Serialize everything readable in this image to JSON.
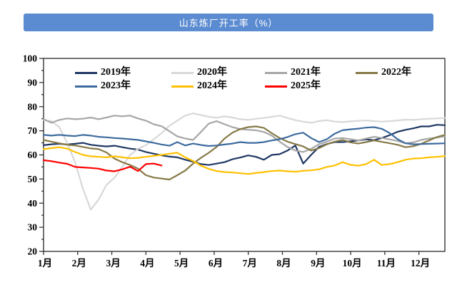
{
  "title_bar": {
    "text": "山东炼厂开工率（%）",
    "bg_color": "#5B8BD0",
    "text_color": "#FFFFFF"
  },
  "chart_data": {
    "type": "line",
    "title": "山东炼厂开工率（%）",
    "xlabel": "",
    "ylabel": "",
    "x_tick_labels": [
      "1月",
      "2月",
      "3月",
      "4月",
      "5月",
      "6月",
      "7月",
      "8月",
      "9月",
      "10月",
      "11月",
      "12月"
    ],
    "y_tick_labels": [
      "20",
      "30",
      "40",
      "50",
      "60",
      "70",
      "80",
      "90",
      "100"
    ],
    "ylim": [
      20,
      100
    ],
    "y_tick_step": 10,
    "grid": false,
    "legend_position": "inside-top, two rows",
    "x_unit": "week index (52 weeks per year, months marked on axis)",
    "series": [
      {
        "name": "2019年",
        "color": "#1F3864",
        "values": [
          64.0,
          64.4,
          64.6,
          64.3,
          64.6,
          65.0,
          64.2,
          63.8,
          63.5,
          63.8,
          63.2,
          62.6,
          62.2,
          61.2,
          60.5,
          59.8,
          59.3,
          59.0,
          58.0,
          57.2,
          56.2,
          55.8,
          56.4,
          57.0,
          58.2,
          58.9,
          59.8,
          59.2,
          58.0,
          60.0,
          60.3,
          61.8,
          63.9,
          56.4,
          60.0,
          63.3,
          64.5,
          65.3,
          65.3,
          65.6,
          66.0,
          66.4,
          66.1,
          67.0,
          68.2,
          69.6,
          70.4,
          71.0,
          71.8,
          71.8,
          72.5,
          72.3
        ]
      },
      {
        "name": "2020年",
        "color": "#D8D8D8",
        "values": [
          74.5,
          74.0,
          71.5,
          65.0,
          57.0,
          46.0,
          37.3,
          41.5,
          47.6,
          50.5,
          55.0,
          60.0,
          62.5,
          64.0,
          66.5,
          69.0,
          72.1,
          74.2,
          76.3,
          77.2,
          76.5,
          75.8,
          75.4,
          76.0,
          75.5,
          74.8,
          74.5,
          75.0,
          75.3,
          75.8,
          76.3,
          75.3,
          74.4,
          73.8,
          73.3,
          74.0,
          74.4,
          73.8,
          73.6,
          73.9,
          74.1,
          74.3,
          74.0,
          73.8,
          74.0,
          74.3,
          74.6,
          74.5,
          74.8,
          75.0,
          75.1,
          75.3
        ]
      },
      {
        "name": "2021年",
        "color": "#A6A6A6",
        "values": [
          74.8,
          73.3,
          74.5,
          75.1,
          74.8,
          75.0,
          75.5,
          74.8,
          75.5,
          76.3,
          76.0,
          76.3,
          75.1,
          74.2,
          72.7,
          71.9,
          69.8,
          67.7,
          66.8,
          66.2,
          69.5,
          73.0,
          74.0,
          72.7,
          71.5,
          70.7,
          70.4,
          70.2,
          69.5,
          68.0,
          65.5,
          63.3,
          61.8,
          61.2,
          62.5,
          64.4,
          65.5,
          66.8,
          67.0,
          66.5,
          66.0,
          66.8,
          67.5,
          67.0,
          66.4,
          65.8,
          64.8,
          65.2,
          66.2,
          66.8,
          67.2,
          67.7
        ]
      },
      {
        "name": "2022年",
        "color": "#867946",
        "values": [
          66.2,
          65.5,
          64.8,
          64.2,
          63.9,
          63.3,
          62.7,
          62.4,
          61.0,
          58.5,
          57.0,
          55.8,
          54.3,
          51.6,
          50.6,
          50.2,
          49.8,
          51.6,
          53.5,
          56.4,
          58.8,
          60.9,
          63.3,
          66.8,
          69.2,
          70.7,
          71.5,
          71.8,
          71.2,
          69.0,
          67.0,
          65.5,
          64.5,
          63.5,
          61.8,
          62.8,
          64.4,
          65.5,
          66.2,
          65.2,
          64.7,
          65.3,
          66.0,
          65.4,
          64.8,
          64.2,
          63.2,
          63.6,
          64.6,
          66.0,
          67.4,
          68.3
        ]
      },
      {
        "name": "2023年",
        "color": "#3D6B9E",
        "values": [
          68.3,
          68.0,
          68.3,
          68.0,
          67.8,
          68.3,
          68.0,
          67.5,
          67.3,
          67.0,
          66.8,
          66.5,
          66.2,
          65.6,
          65.0,
          64.3,
          63.8,
          65.3,
          63.9,
          64.7,
          64.1,
          63.7,
          63.9,
          64.3,
          64.7,
          65.3,
          65.0,
          65.0,
          65.3,
          66.0,
          66.5,
          67.4,
          68.6,
          69.2,
          67.0,
          65.3,
          66.5,
          68.8,
          70.2,
          70.6,
          70.9,
          71.3,
          71.5,
          70.8,
          69.0,
          66.5,
          64.8,
          64.4,
          64.5,
          64.6,
          64.7,
          64.8
        ]
      },
      {
        "name": "2024年",
        "color": "#FFC000",
        "values": [
          62.4,
          62.8,
          63.2,
          62.6,
          61.2,
          60.0,
          59.4,
          59.2,
          59.0,
          59.4,
          59.0,
          58.6,
          58.8,
          59.2,
          59.6,
          60.0,
          60.5,
          60.9,
          59.0,
          57.5,
          55.5,
          54.2,
          53.3,
          52.9,
          52.7,
          52.4,
          52.1,
          52.5,
          52.9,
          53.3,
          53.5,
          53.2,
          53.0,
          53.4,
          53.6,
          54.0,
          55.0,
          55.6,
          57.0,
          55.9,
          55.5,
          56.2,
          58.0,
          55.8,
          56.2,
          57.0,
          58.0,
          58.5,
          58.6,
          59.0,
          59.2,
          59.5
        ]
      },
      {
        "name": "2025年",
        "color": "#FF0000",
        "values": [
          57.8,
          57.4,
          56.8,
          56.3,
          55.0,
          54.8,
          54.6,
          54.3,
          53.5,
          53.2,
          54.0,
          55.1,
          53.3,
          56.2,
          56.4,
          55.6
        ]
      }
    ]
  },
  "legend": {
    "rows": [
      [
        "2019年",
        "2020年",
        "2021年",
        "2022年"
      ],
      [
        "2023年",
        "2024年",
        "2025年"
      ]
    ]
  },
  "style_colors": {
    "axis": "#262626",
    "tick_label": "#000000"
  }
}
